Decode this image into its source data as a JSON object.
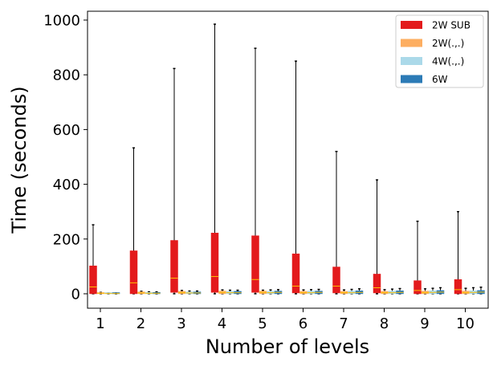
{
  "chart_data": {
    "type": "box",
    "title": "",
    "xlabel": "Number of levels",
    "ylabel": "Time (seconds)",
    "categories": [
      "1",
      "2",
      "3",
      "4",
      "5",
      "6",
      "7",
      "8",
      "9",
      "10"
    ],
    "ylim": [
      -50,
      1040
    ],
    "yticks": [
      0,
      200,
      400,
      600,
      800,
      1000
    ],
    "grid": false,
    "legend_position": "top-right",
    "median_color": "#ffbf00",
    "series": [
      {
        "name": "2W SUB",
        "color": "#e31a1c",
        "boxes": [
          {
            "min": 0,
            "q1": 0,
            "median": 25,
            "q3": 102,
            "max": 252
          },
          {
            "min": 0,
            "q1": 0,
            "median": 40,
            "q3": 157,
            "max": 533
          },
          {
            "min": 0,
            "q1": 5,
            "median": 57,
            "q3": 195,
            "max": 823
          },
          {
            "min": 0,
            "q1": 5,
            "median": 63,
            "q3": 222,
            "max": 985
          },
          {
            "min": 0,
            "q1": 5,
            "median": 52,
            "q3": 212,
            "max": 897
          },
          {
            "min": 0,
            "q1": 3,
            "median": 28,
            "q3": 146,
            "max": 850
          },
          {
            "min": 0,
            "q1": 3,
            "median": 28,
            "q3": 98,
            "max": 520
          },
          {
            "min": 0,
            "q1": 3,
            "median": 22,
            "q3": 72,
            "max": 416
          },
          {
            "min": 0,
            "q1": 0,
            "median": 12,
            "q3": 48,
            "max": 265
          },
          {
            "min": 0,
            "q1": 0,
            "median": 15,
            "q3": 52,
            "max": 300
          }
        ]
      },
      {
        "name": "2W(.,.)",
        "color": "#fdae61",
        "boxes": [
          {
            "min": 0,
            "q1": 0,
            "median": 2,
            "q3": 3,
            "max": 5
          },
          {
            "min": 0,
            "q1": 0,
            "median": 3,
            "q3": 7,
            "max": 9
          },
          {
            "min": 0,
            "q1": 0,
            "median": 4,
            "q3": 9,
            "max": 12
          },
          {
            "min": 0,
            "q1": 0,
            "median": 5,
            "q3": 10,
            "max": 14
          },
          {
            "min": 0,
            "q1": 0,
            "median": 5,
            "q3": 10,
            "max": 13
          },
          {
            "min": 0,
            "q1": 0,
            "median": 4,
            "q3": 9,
            "max": 14
          },
          {
            "min": 0,
            "q1": 0,
            "median": 4,
            "q3": 9,
            "max": 14
          },
          {
            "min": 0,
            "q1": 0,
            "median": 4,
            "q3": 9,
            "max": 15
          },
          {
            "min": 0,
            "q1": 0,
            "median": 4,
            "q3": 10,
            "max": 18
          },
          {
            "min": 0,
            "q1": 0,
            "median": 4,
            "q3": 10,
            "max": 20
          }
        ]
      },
      {
        "name": "4W(.,.)",
        "color": "#abd9e9",
        "boxes": [
          {
            "min": 0,
            "q1": 0,
            "median": 1,
            "q3": 2,
            "max": 3
          },
          {
            "min": 0,
            "q1": 0,
            "median": 2,
            "q3": 5,
            "max": 7
          },
          {
            "min": 0,
            "q1": 0,
            "median": 3,
            "q3": 7,
            "max": 10
          },
          {
            "min": 0,
            "q1": 0,
            "median": 4,
            "q3": 9,
            "max": 13
          },
          {
            "min": 0,
            "q1": 0,
            "median": 4,
            "q3": 9,
            "max": 14
          },
          {
            "min": 0,
            "q1": 0,
            "median": 4,
            "q3": 10,
            "max": 15
          },
          {
            "min": 0,
            "q1": 0,
            "median": 4,
            "q3": 10,
            "max": 16
          },
          {
            "min": 0,
            "q1": 0,
            "median": 4,
            "q3": 10,
            "max": 17
          },
          {
            "min": 0,
            "q1": 0,
            "median": 5,
            "q3": 11,
            "max": 20
          },
          {
            "min": 0,
            "q1": 0,
            "median": 5,
            "q3": 11,
            "max": 22
          }
        ]
      },
      {
        "name": "6W",
        "color": "#2c7bb6",
        "boxes": [
          {
            "min": 0,
            "q1": 0,
            "median": 1,
            "q3": 2,
            "max": 3
          },
          {
            "min": 0,
            "q1": 0,
            "median": 2,
            "q3": 5,
            "max": 7
          },
          {
            "min": 0,
            "q1": 0,
            "median": 3,
            "q3": 7,
            "max": 10
          },
          {
            "min": 0,
            "q1": 0,
            "median": 4,
            "q3": 9,
            "max": 13
          },
          {
            "min": 0,
            "q1": 0,
            "median": 5,
            "q3": 10,
            "max": 15
          },
          {
            "min": 0,
            "q1": 0,
            "median": 5,
            "q3": 10,
            "max": 16
          },
          {
            "min": 0,
            "q1": 0,
            "median": 5,
            "q3": 11,
            "max": 18
          },
          {
            "min": 0,
            "q1": 0,
            "median": 5,
            "q3": 11,
            "max": 19
          },
          {
            "min": 0,
            "q1": 0,
            "median": 6,
            "q3": 12,
            "max": 22
          },
          {
            "min": 0,
            "q1": 0,
            "median": 6,
            "q3": 12,
            "max": 24
          }
        ]
      }
    ]
  }
}
